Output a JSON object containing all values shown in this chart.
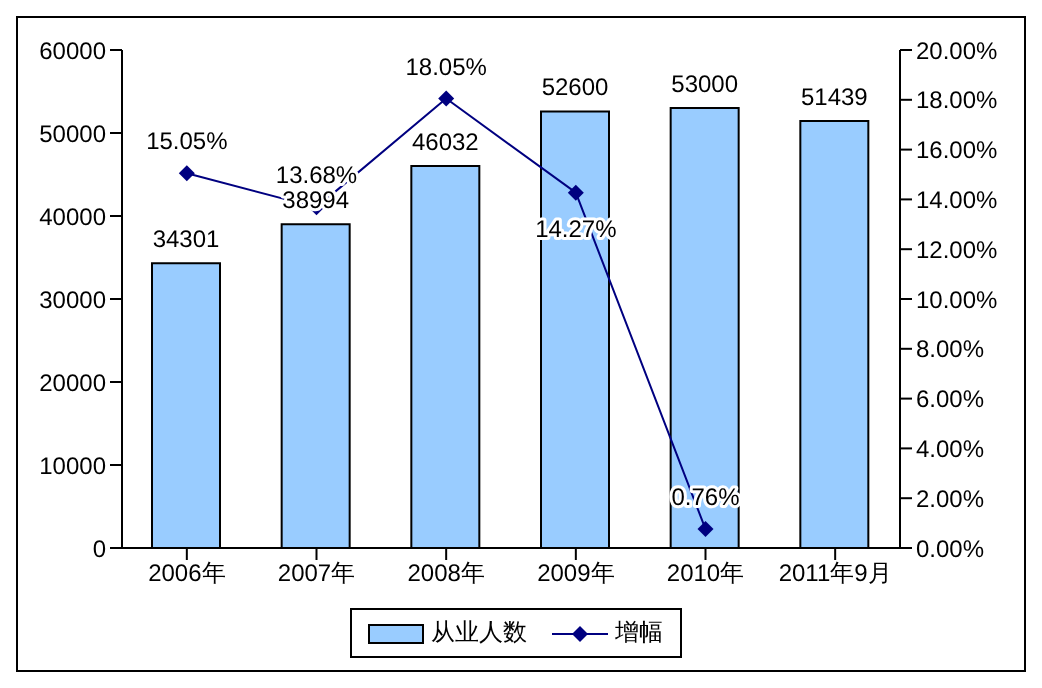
{
  "chart_data": {
    "type": "bar",
    "categories": [
      "2006年",
      "2007年",
      "2008年",
      "2009年",
      "2010年",
      "2011年9月"
    ],
    "series": [
      {
        "name": "从业人数",
        "color": "#99ccff",
        "values": [
          34301,
          38994,
          46032,
          52600,
          53000,
          51439
        ],
        "value_labels": [
          "34301",
          "38994",
          "46032",
          "52600",
          "53000",
          "51439"
        ]
      },
      {
        "name": "增幅",
        "type": "line",
        "axis": "y2",
        "color": "#000080",
        "values": [
          15.05,
          13.68,
          18.05,
          14.27,
          0.76,
          null
        ],
        "value_labels": [
          "15.05%",
          "13.68%",
          "18.05%",
          "14.27%",
          "0.76%",
          null
        ]
      }
    ],
    "ylim": [
      0,
      60000
    ],
    "yticks": [
      0,
      10000,
      20000,
      30000,
      40000,
      50000,
      60000
    ],
    "y2lim": [
      0,
      20
    ],
    "y2ticks": [
      {
        "value": 0,
        "label": "0.00%"
      },
      {
        "value": 2,
        "label": "2.00%"
      },
      {
        "value": 4,
        "label": "4.00%"
      },
      {
        "value": 6,
        "label": "6.00%"
      },
      {
        "value": 8,
        "label": "8.00%"
      },
      {
        "value": 10,
        "label": "10.00%"
      },
      {
        "value": 12,
        "label": "12.00%"
      },
      {
        "value": 14,
        "label": "14.00%"
      },
      {
        "value": 16,
        "label": "16.00%"
      },
      {
        "value": 18,
        "label": "18.00%"
      },
      {
        "value": 20,
        "label": "20.00%"
      }
    ],
    "legend": "bottom",
    "marker": "diamond",
    "grid": false
  }
}
